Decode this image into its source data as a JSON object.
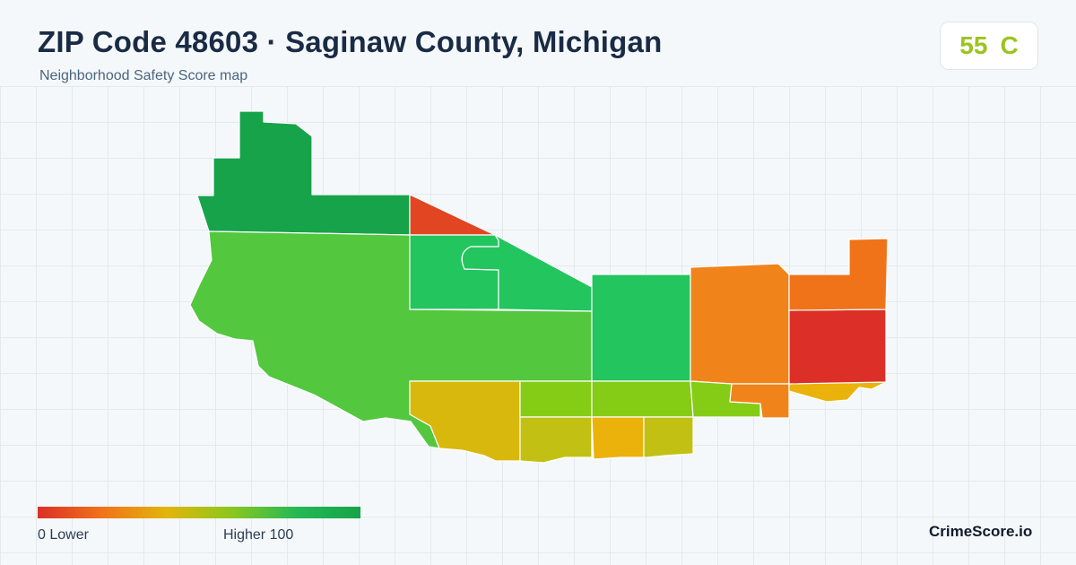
{
  "header": {
    "title": "ZIP Code 48603 · Saginaw County, Michigan",
    "subtitle": "Neighborhood Safety Score map"
  },
  "score_card": {
    "score": "55",
    "grade": "C",
    "color": "#9cc31f"
  },
  "map": {
    "colors": {
      "dark_green": "#16a34a",
      "green": "#22c55e",
      "light_green": "#53c73e",
      "yellow_green": "#84cc16",
      "olive": "#c2c113",
      "mustard": "#d8b80d",
      "amber": "#eab20a",
      "orange": "#f0731a",
      "dark_orange": "#f0841a",
      "red_orange": "#e24522",
      "red": "#dc2f27"
    },
    "boundary_color": "#ffffff"
  },
  "legend": {
    "min_label": "0  Lower",
    "max_label": "Higher  100",
    "gradient": [
      "#dc2f27",
      "#f0731a",
      "#e2b50c",
      "#8cc71e",
      "#25b955",
      "#16a34a"
    ]
  },
  "footer": {
    "brand": "CrimeScore.io"
  }
}
